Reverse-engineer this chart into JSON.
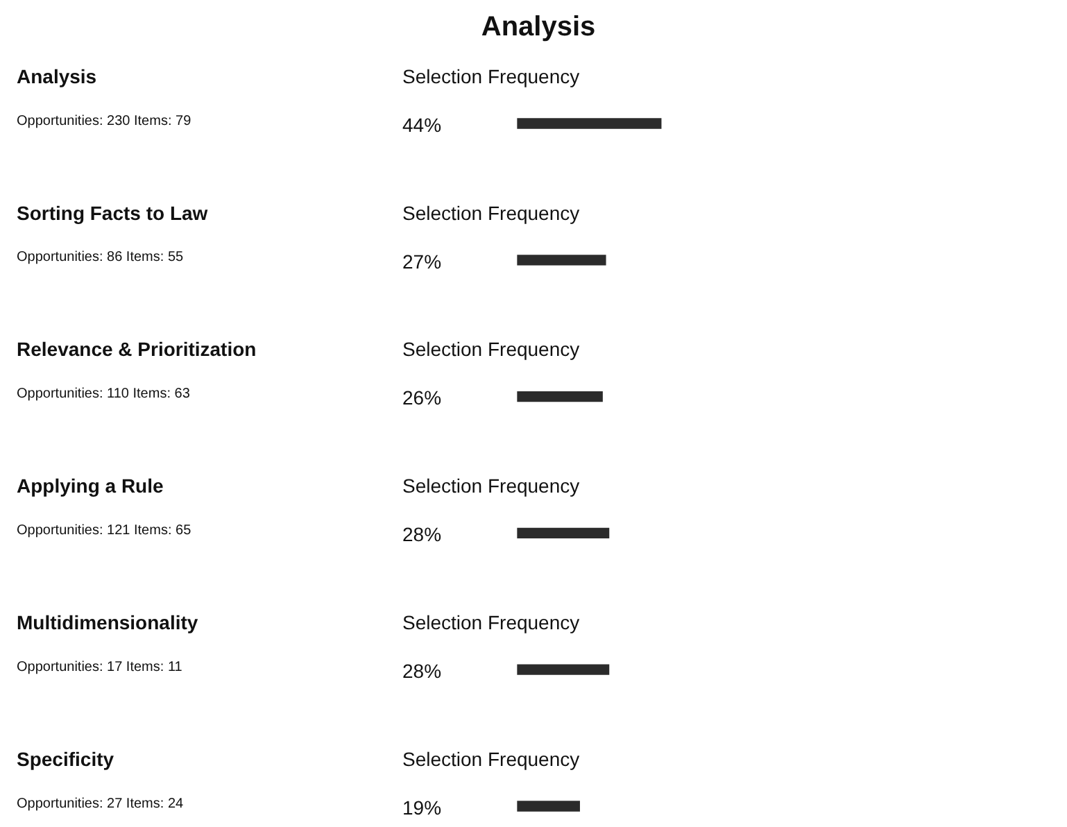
{
  "chart_data": {
    "type": "bar",
    "orientation": "horizontal",
    "title": "Analysis",
    "xlabel": "Selection Frequency",
    "categories": [
      "Analysis",
      "Sorting Facts to Law",
      "Relevance & Prioritization",
      "Applying a Rule",
      "Multidimensionality",
      "Specificity"
    ],
    "values": [
      44,
      27,
      26,
      28,
      28,
      19
    ],
    "value_labels": [
      "44%",
      "27%",
      "26%",
      "28%",
      "28%",
      "19%"
    ],
    "color": "#2b2b2b",
    "annotations": [
      "Opportunities: 230 Items: 79",
      "Opportunities: 86 Items: 55",
      "Opportunities: 110 Items: 63",
      "Opportunities: 121 Items: 65",
      "Opportunities: 17 Items: 11",
      "Opportunities: 27 Items: 24"
    ],
    "tick_labels": false,
    "legend": false
  }
}
